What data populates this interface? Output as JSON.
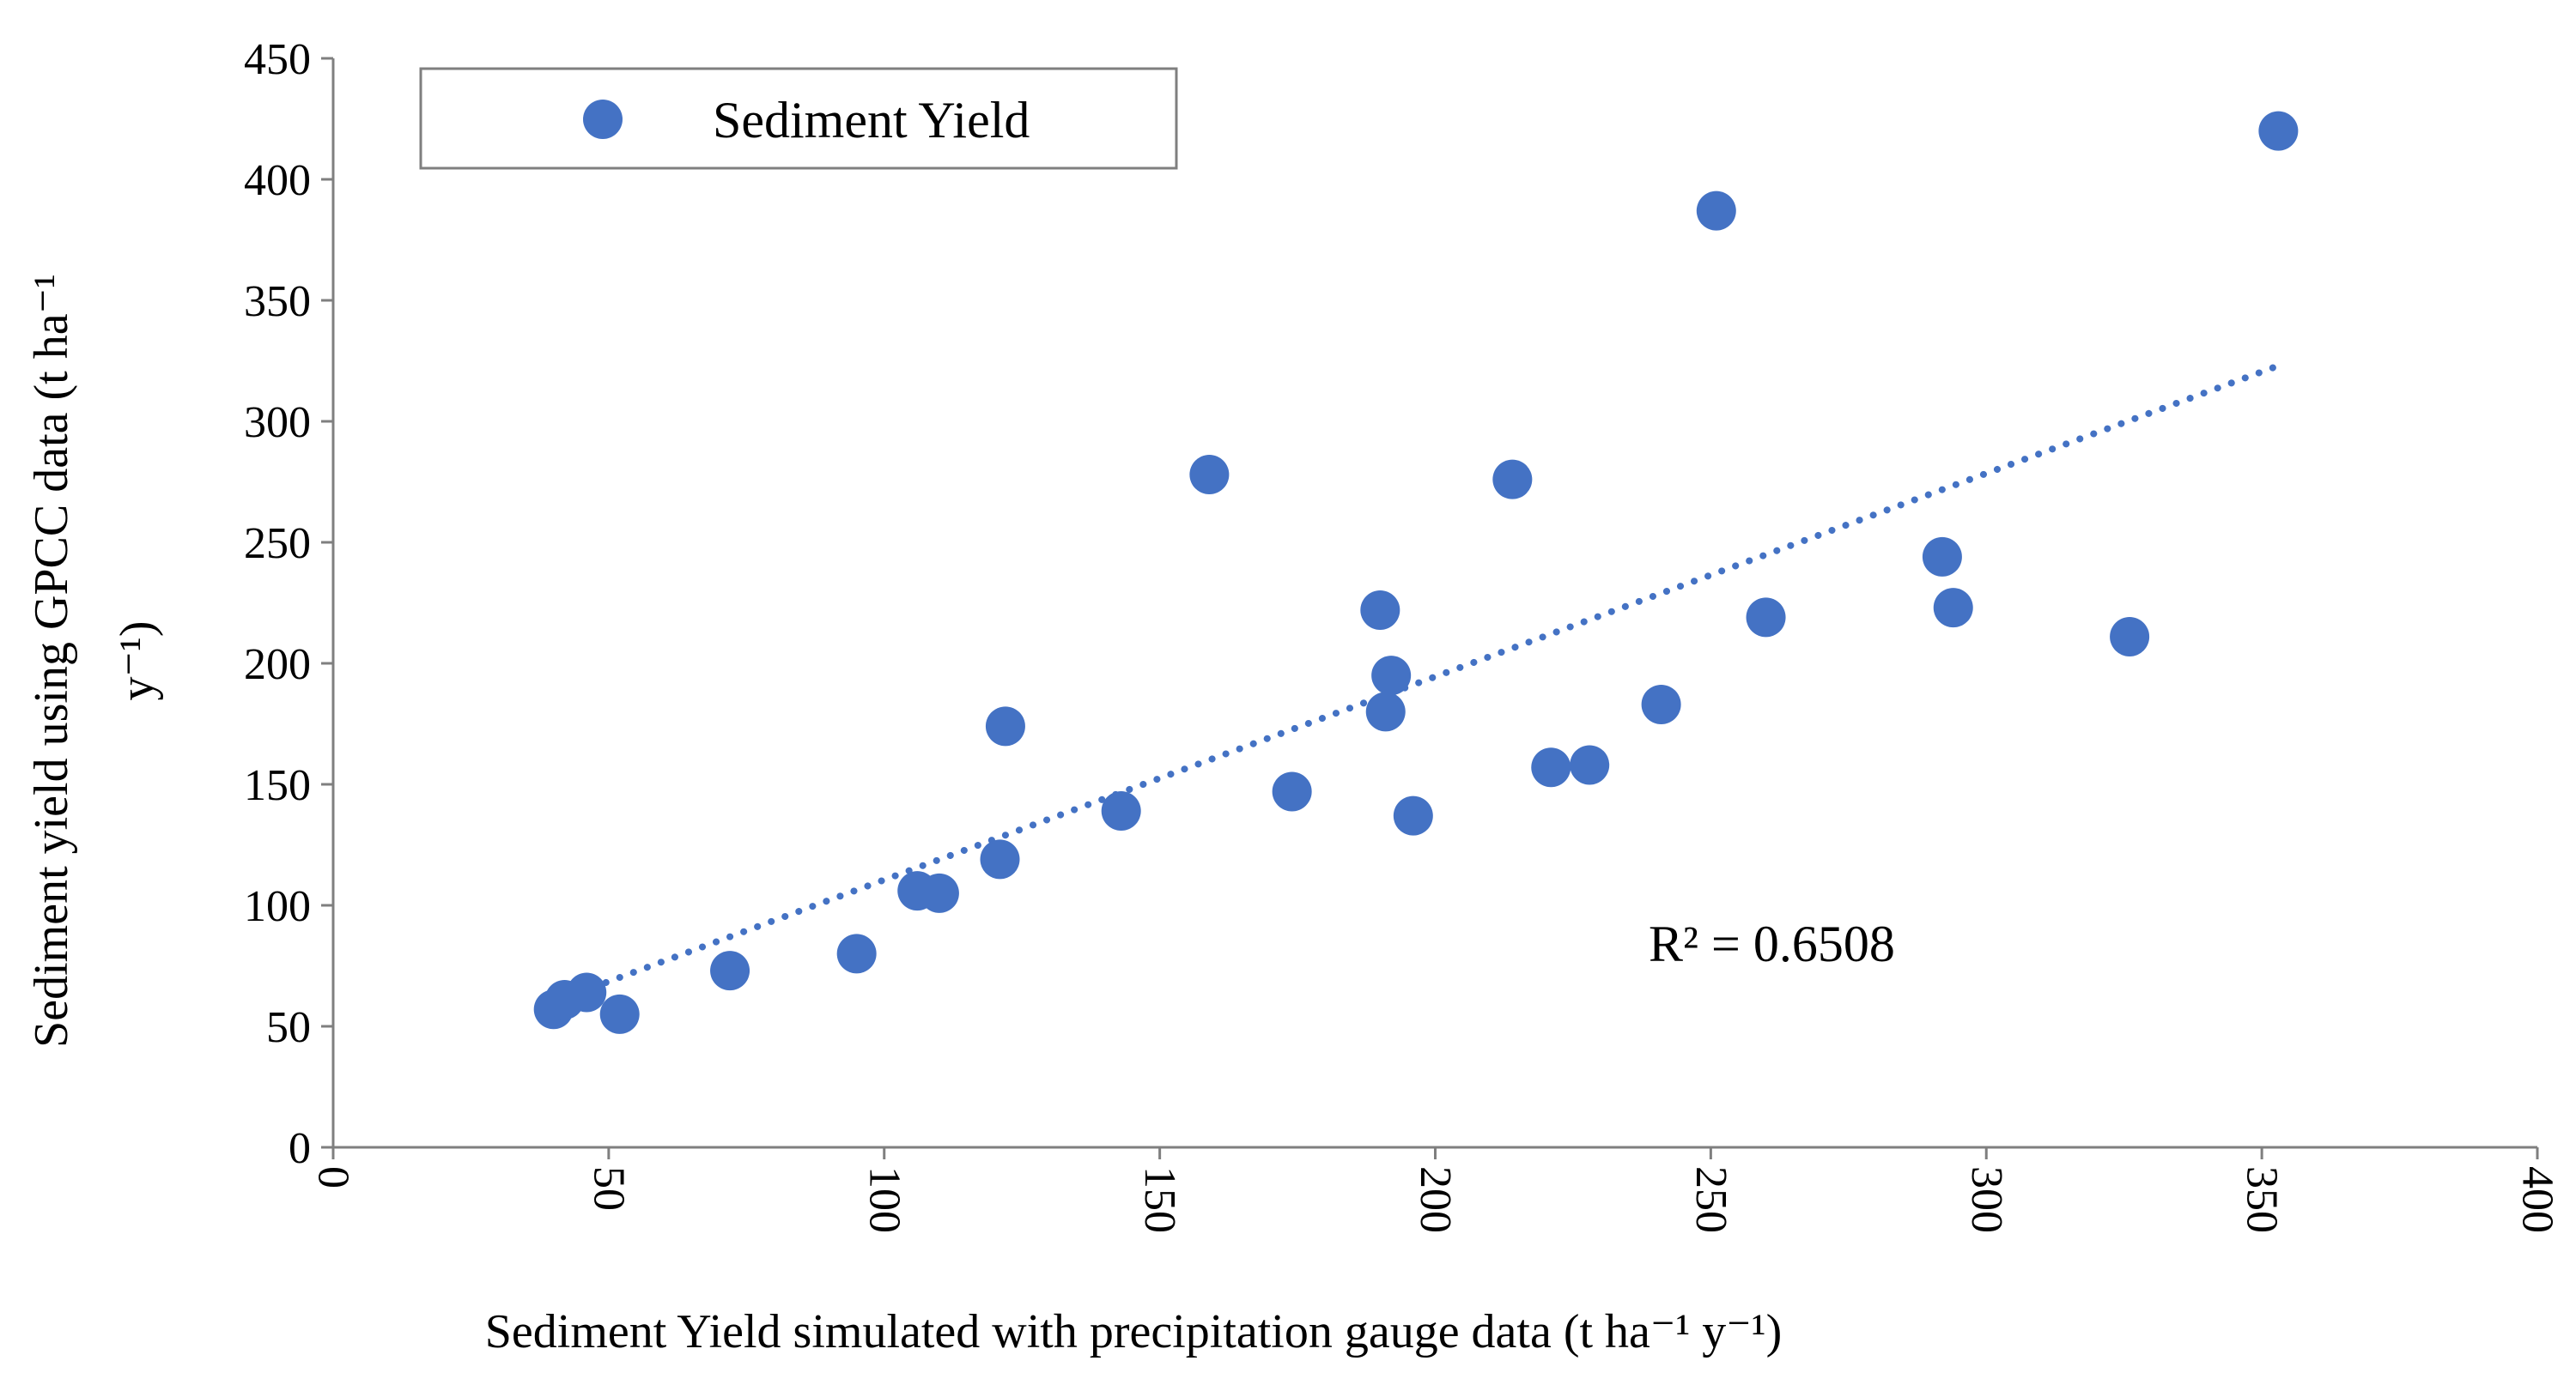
{
  "chart_data": {
    "type": "scatter",
    "title": "",
    "xlabel": "Sediment Yield simulated with precipitation gauge data (t ha⁻¹ y⁻¹)",
    "ylabel_line1": "Sediment yield using GPCC data (t ha⁻¹",
    "ylabel_line2": "y⁻¹)",
    "xlim": [
      0,
      400
    ],
    "ylim": [
      0,
      450
    ],
    "x_ticks": [
      0,
      50,
      100,
      150,
      200,
      250,
      300,
      350,
      400
    ],
    "y_ticks": [
      0,
      50,
      100,
      150,
      200,
      250,
      300,
      350,
      400,
      450
    ],
    "x_tick_labels": [
      "0",
      "50",
      "100",
      "150",
      "200",
      "250",
      "300",
      "350",
      "400"
    ],
    "y_tick_labels": [
      "0",
      "50",
      "100",
      "150",
      "200",
      "250",
      "300",
      "350",
      "400",
      "450"
    ],
    "grid": false,
    "legend_position": "top-left",
    "series": [
      {
        "name": "Sediment Yield",
        "color": "#4472C4",
        "points": [
          {
            "x": 40,
            "y": 57
          },
          {
            "x": 42,
            "y": 61
          },
          {
            "x": 46,
            "y": 64
          },
          {
            "x": 52,
            "y": 55
          },
          {
            "x": 72,
            "y": 73
          },
          {
            "x": 95,
            "y": 80
          },
          {
            "x": 106,
            "y": 106
          },
          {
            "x": 110,
            "y": 105
          },
          {
            "x": 121,
            "y": 119
          },
          {
            "x": 122,
            "y": 174
          },
          {
            "x": 143,
            "y": 139
          },
          {
            "x": 159,
            "y": 278
          },
          {
            "x": 174,
            "y": 147
          },
          {
            "x": 190,
            "y": 222
          },
          {
            "x": 191,
            "y": 180
          },
          {
            "x": 192,
            "y": 195
          },
          {
            "x": 196,
            "y": 137
          },
          {
            "x": 214,
            "y": 276
          },
          {
            "x": 221,
            "y": 157
          },
          {
            "x": 228,
            "y": 158
          },
          {
            "x": 241,
            "y": 183
          },
          {
            "x": 251,
            "y": 387
          },
          {
            "x": 260,
            "y": 219
          },
          {
            "x": 292,
            "y": 244
          },
          {
            "x": 294,
            "y": 223
          },
          {
            "x": 326,
            "y": 211
          },
          {
            "x": 353,
            "y": 420
          }
        ]
      }
    ],
    "trendline": {
      "type": "linear",
      "style": "dotted",
      "color": "#4472C4",
      "x_start": 47,
      "y_start": 66,
      "x_end": 353,
      "y_end": 323
    },
    "annotation": "R² = 0.6508"
  }
}
